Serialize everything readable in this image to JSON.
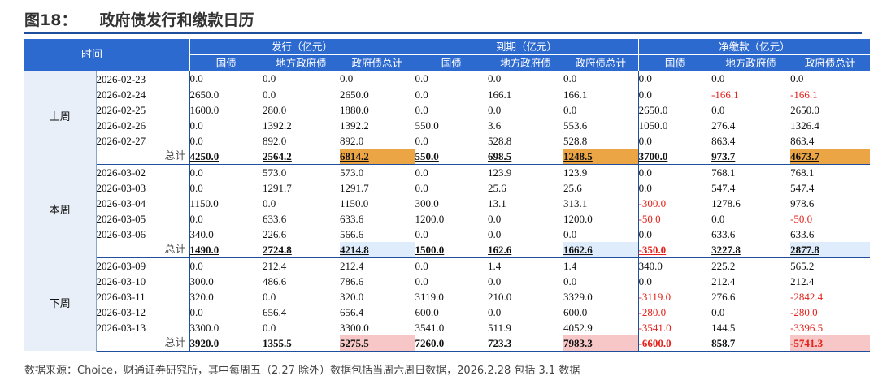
{
  "figure": {
    "number": "图18：",
    "title": "政府债发行和缴款日历"
  },
  "header": {
    "time": "时间",
    "groups": [
      "发行（亿元）",
      "到期（亿元）",
      "净缴款（亿元）"
    ],
    "sub": [
      "国债",
      "地方政府债",
      "政府债总计",
      "国债",
      "地方政府债",
      "政府债总计",
      "国债",
      "地方政府债",
      "政府债总计"
    ]
  },
  "weeks": [
    {
      "label": "上周",
      "rows": [
        {
          "date": "2026-02-23",
          "v": [
            "0.0",
            "0.0",
            "0.0",
            "0.0",
            "0.0",
            "0.0",
            "0.0",
            "0.0",
            "0.0"
          ]
        },
        {
          "date": "2026-02-24",
          "v": [
            "2650.0",
            "0.0",
            "2650.0",
            "0.0",
            "166.1",
            "166.1",
            "0.0",
            "-166.1",
            "-166.1"
          ]
        },
        {
          "date": "2026-02-25",
          "v": [
            "1600.0",
            "280.0",
            "1880.0",
            "0.0",
            "0.0",
            "0.0",
            "2650.0",
            "0.0",
            "2650.0"
          ]
        },
        {
          "date": "2026-02-26",
          "v": [
            "0.0",
            "1392.2",
            "1392.2",
            "550.0",
            "3.6",
            "553.6",
            "1050.0",
            "276.4",
            "1326.4"
          ]
        },
        {
          "date": "2026-02-27",
          "v": [
            "0.0",
            "892.0",
            "892.0",
            "0.0",
            "528.8",
            "528.8",
            "0.0",
            "863.4",
            "863.4"
          ]
        }
      ],
      "total": {
        "label": "总计",
        "v": [
          "4250.0",
          "2564.2",
          "6814.2",
          "550.0",
          "698.5",
          "1248.5",
          "3700.0",
          "973.7",
          "4673.7"
        ]
      }
    },
    {
      "label": "本周",
      "rows": [
        {
          "date": "2026-03-02",
          "v": [
            "0.0",
            "573.0",
            "573.0",
            "0.0",
            "123.9",
            "123.9",
            "0.0",
            "768.1",
            "768.1"
          ]
        },
        {
          "date": "2026-03-03",
          "v": [
            "0.0",
            "1291.7",
            "1291.7",
            "0.0",
            "25.6",
            "25.6",
            "0.0",
            "547.4",
            "547.4"
          ]
        },
        {
          "date": "2026-03-04",
          "v": [
            "1150.0",
            "0.0",
            "1150.0",
            "300.0",
            "13.1",
            "313.1",
            "-300.0",
            "1278.6",
            "978.6"
          ]
        },
        {
          "date": "2026-03-05",
          "v": [
            "0.0",
            "633.6",
            "633.6",
            "1200.0",
            "0.0",
            "1200.0",
            "-50.0",
            "0.0",
            "-50.0"
          ]
        },
        {
          "date": "2026-03-06",
          "v": [
            "340.0",
            "226.6",
            "566.6",
            "0.0",
            "0.0",
            "0.0",
            "0.0",
            "633.6",
            "633.6"
          ]
        }
      ],
      "total": {
        "label": "总计",
        "v": [
          "1490.0",
          "2724.8",
          "4214.8",
          "1500.0",
          "162.6",
          "1662.6",
          "-350.0",
          "3227.8",
          "2877.8"
        ]
      }
    },
    {
      "label": "下周",
      "rows": [
        {
          "date": "2026-03-09",
          "v": [
            "0.0",
            "212.4",
            "212.4",
            "0.0",
            "1.4",
            "1.4",
            "340.0",
            "225.2",
            "565.2"
          ]
        },
        {
          "date": "2026-03-10",
          "v": [
            "300.0",
            "486.6",
            "786.6",
            "0.0",
            "0.0",
            "0.0",
            "0.0",
            "212.4",
            "212.4"
          ]
        },
        {
          "date": "2026-03-11",
          "v": [
            "320.0",
            "0.0",
            "320.0",
            "3119.0",
            "210.0",
            "3329.0",
            "-3119.0",
            "276.6",
            "-2842.4"
          ]
        },
        {
          "date": "2026-03-12",
          "v": [
            "0.0",
            "656.4",
            "656.4",
            "600.0",
            "0.0",
            "600.0",
            "-280.0",
            "0.0",
            "-280.0"
          ]
        },
        {
          "date": "2026-03-13",
          "v": [
            "3300.0",
            "0.0",
            "3300.0",
            "3541.0",
            "511.9",
            "4052.9",
            "-3541.0",
            "144.5",
            "-3396.5"
          ]
        }
      ],
      "total": {
        "label": "总计",
        "v": [
          "3920.0",
          "1355.5",
          "5275.5",
          "7260.0",
          "723.3",
          "7983.3",
          "-6600.0",
          "858.7",
          "-5741.3"
        ]
      }
    }
  ],
  "highlight_colors": {
    "orange": "#eba544",
    "light_blue": "#deecfb",
    "pink": "#f6c7c6",
    "negative_text": "#e3231c",
    "header_bg": "#2d6ad0"
  },
  "note": "数据来源：Choice，财通证券研究所，其中每周五（2.27 除外）数据包括当周六周日数据，2026.2.28 包括 3.1 数据"
}
